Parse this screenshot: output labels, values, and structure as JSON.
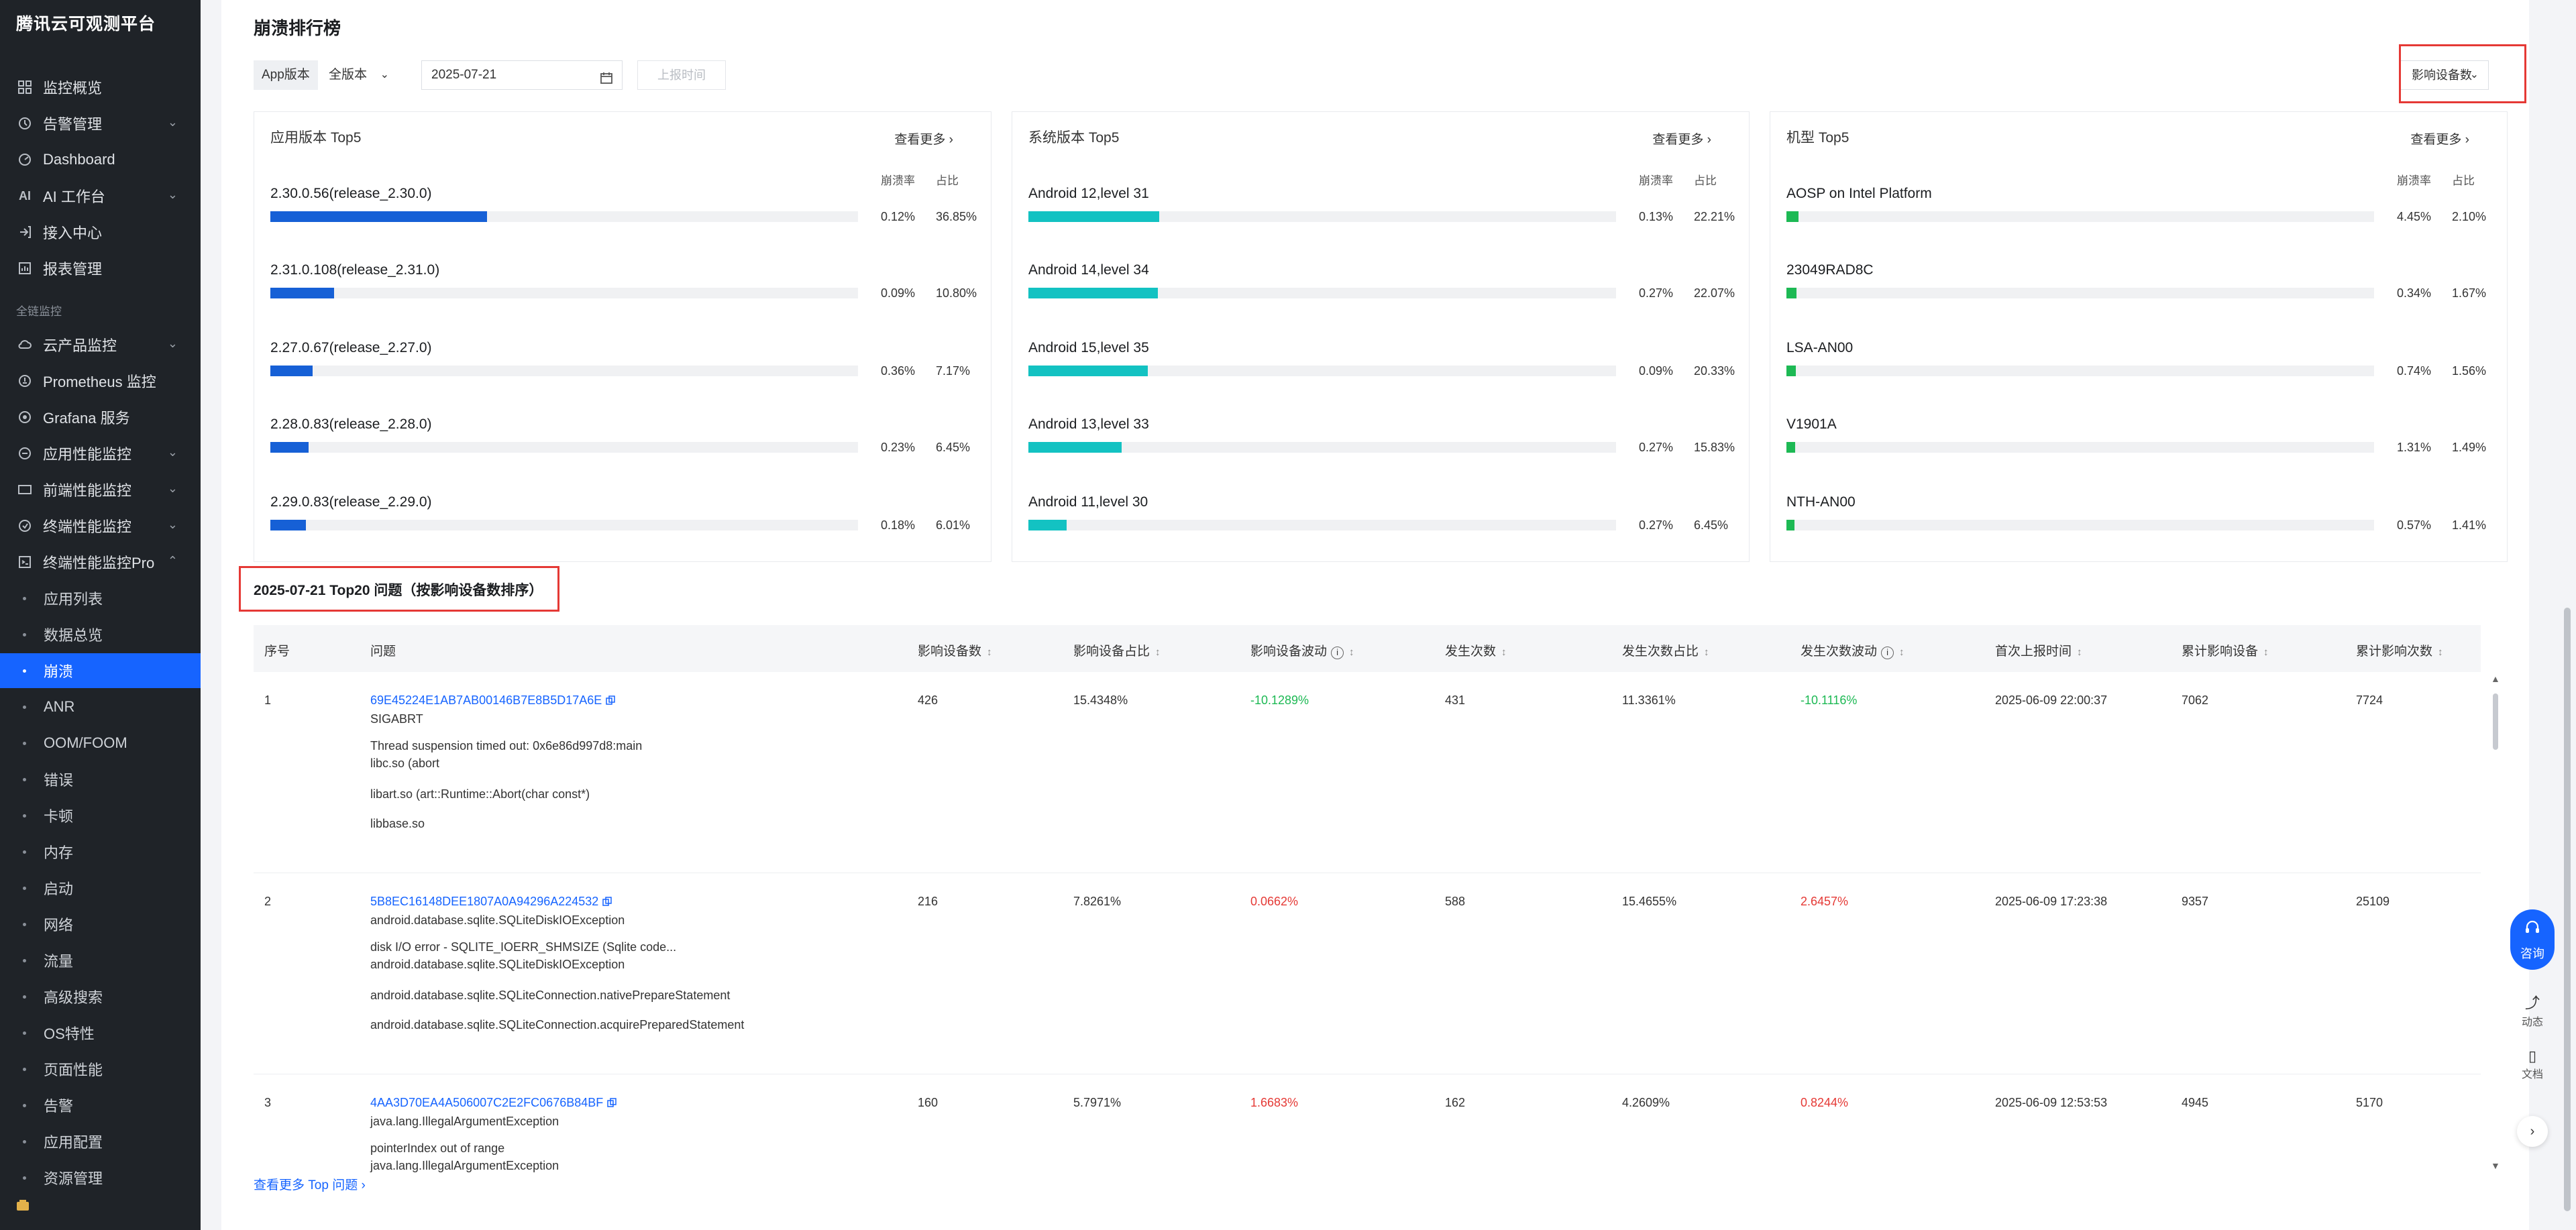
{
  "sidebar": {
    "title": "腾讯云可观测平台",
    "items": [
      {
        "label": "监控概览",
        "icon": "grid-icon"
      },
      {
        "label": "告警管理",
        "icon": "alarm-icon",
        "expandable": true
      },
      {
        "label": "Dashboard",
        "icon": "dashboard-icon"
      },
      {
        "label": "AI 工作台",
        "icon": "ai-icon",
        "expandable": true
      },
      {
        "label": "接入中心",
        "icon": "access-icon"
      },
      {
        "label": "报表管理",
        "icon": "report-icon"
      }
    ],
    "section": "全链监控",
    "section_items": [
      {
        "label": "云产品监控",
        "icon": "cloud-icon",
        "expandable": true
      },
      {
        "label": "Prometheus 监控",
        "icon": "prometheus-icon"
      },
      {
        "label": "Grafana 服务",
        "icon": "grafana-icon"
      },
      {
        "label": "应用性能监控",
        "icon": "apm-icon",
        "expandable": true
      },
      {
        "label": "前端性能监控",
        "icon": "frontend-icon",
        "expandable": true
      },
      {
        "label": "终端性能监控",
        "icon": "terminal-icon",
        "expandable": true
      },
      {
        "label": "终端性能监控Pro",
        "icon": "terminal-pro-icon",
        "expandable": true
      }
    ],
    "sub_items": [
      {
        "label": "应用列表"
      },
      {
        "label": "数据总览"
      },
      {
        "label": "崩溃",
        "active": true
      },
      {
        "label": "ANR"
      },
      {
        "label": "OOM/FOOM"
      },
      {
        "label": "错误"
      },
      {
        "label": "卡顿"
      },
      {
        "label": "内存"
      },
      {
        "label": "启动"
      },
      {
        "label": "网络"
      },
      {
        "label": "流量"
      },
      {
        "label": "高级搜索"
      },
      {
        "label": "OS特性"
      },
      {
        "label": "页面性能"
      },
      {
        "label": "告警"
      },
      {
        "label": "应用配置"
      },
      {
        "label": "资源管理"
      }
    ]
  },
  "main": {
    "title": "崩溃排行榜",
    "filters": {
      "app_version_label": "App版本",
      "app_version_value": "全版本",
      "date": "2025-07-21",
      "report_time_button": "上报时间",
      "sort_button": "影响设备数"
    },
    "colors": {
      "blue": "#1660d6",
      "cyan": "#13c2c2",
      "green": "#1db954",
      "red": "#e53935",
      "link": "#1664ff"
    },
    "panels": [
      {
        "title": "应用版本 Top5",
        "more": "查看更多",
        "col_rate": "崩溃率",
        "col_share": "占比",
        "color": "#1660d6",
        "rows": [
          {
            "name": "2.30.0.56(release_2.30.0)",
            "rate": "0.12%",
            "share": "36.85%",
            "share_num": 36.85
          },
          {
            "name": "2.31.0.108(release_2.31.0)",
            "rate": "0.09%",
            "share": "10.80%",
            "share_num": 10.8
          },
          {
            "name": "2.27.0.67(release_2.27.0)",
            "rate": "0.36%",
            "share": "7.17%",
            "share_num": 7.17
          },
          {
            "name": "2.28.0.83(release_2.28.0)",
            "rate": "0.23%",
            "share": "6.45%",
            "share_num": 6.45
          },
          {
            "name": "2.29.0.83(release_2.29.0)",
            "rate": "0.18%",
            "share": "6.01%",
            "share_num": 6.01
          }
        ]
      },
      {
        "title": "系统版本 Top5",
        "more": "查看更多",
        "col_rate": "崩溃率",
        "col_share": "占比",
        "color": "#13c2c2",
        "rows": [
          {
            "name": "Android 12,level 31",
            "rate": "0.13%",
            "share": "22.21%",
            "share_num": 22.21
          },
          {
            "name": "Android 14,level 34",
            "rate": "0.27%",
            "share": "22.07%",
            "share_num": 22.07
          },
          {
            "name": "Android 15,level 35",
            "rate": "0.09%",
            "share": "20.33%",
            "share_num": 20.33
          },
          {
            "name": "Android 13,level 33",
            "rate": "0.27%",
            "share": "15.83%",
            "share_num": 15.83
          },
          {
            "name": "Android 11,level 30",
            "rate": "0.27%",
            "share": "6.45%",
            "share_num": 6.45
          }
        ]
      },
      {
        "title": "机型 Top5",
        "more": "查看更多",
        "col_rate": "崩溃率",
        "col_share": "占比",
        "color": "#1db954",
        "rows": [
          {
            "name": "AOSP on Intel Platform",
            "rate": "4.45%",
            "share": "2.10%",
            "share_num": 2.1
          },
          {
            "name": "23049RAD8C",
            "rate": "0.34%",
            "share": "1.67%",
            "share_num": 1.67
          },
          {
            "name": "LSA-AN00",
            "rate": "0.74%",
            "share": "1.56%",
            "share_num": 1.56
          },
          {
            "name": "V1901A",
            "rate": "1.31%",
            "share": "1.49%",
            "share_num": 1.49
          },
          {
            "name": "NTH-AN00",
            "rate": "0.57%",
            "share": "1.41%",
            "share_num": 1.41
          }
        ]
      }
    ],
    "top20_title": "2025-07-21 Top20 问题（按影响设备数排序）",
    "table": {
      "headers": [
        "序号",
        "问题",
        "影响设备数",
        "影响设备占比",
        "影响设备波动",
        "发生次数",
        "发生次数占比",
        "发生次数波动",
        "首次上报时间",
        "累计影响设备",
        "累计影响次数"
      ],
      "rows": [
        {
          "index": "1",
          "id": "69E45224E1AB7AB00146B7E8B5D17A6E",
          "lines": [
            "SIGABRT",
            "Thread suspension timed out: 0x6e86d997d8:main",
            "libc.so (abort",
            "libart.so (art::Runtime::Abort(char const*)",
            "libbase.so"
          ],
          "devices": "426",
          "device_share": "15.4348%",
          "device_wave": "-10.1289%",
          "device_wave_dir": "down",
          "count": "431",
          "count_share": "11.3361%",
          "count_wave": "-10.1116%",
          "count_wave_dir": "down",
          "first_time": "2025-06-09 22:00:37",
          "total_devices": "7062",
          "total_count": "7724"
        },
        {
          "index": "2",
          "id": "5B8EC16148DEE1807A0A94296A224532",
          "lines": [
            "android.database.sqlite.SQLiteDiskIOException",
            "disk I/O error - SQLITE_IOERR_SHMSIZE (Sqlite code...",
            "android.database.sqlite.SQLiteDiskIOException",
            "android.database.sqlite.SQLiteConnection.nativePrepareStatement",
            "android.database.sqlite.SQLiteConnection.acquirePreparedStatement"
          ],
          "devices": "216",
          "device_share": "7.8261%",
          "device_wave": "0.0662%",
          "device_wave_dir": "up",
          "count": "588",
          "count_share": "15.4655%",
          "count_wave": "2.6457%",
          "count_wave_dir": "up",
          "first_time": "2025-06-09 17:23:38",
          "total_devices": "9357",
          "total_count": "25109"
        },
        {
          "index": "3",
          "id": "4AA3D70EA4A506007C2E2FC0676B84BF",
          "lines": [
            "java.lang.IllegalArgumentException",
            "pointerIndex out of range",
            "java.lang.IllegalArgumentException"
          ],
          "devices": "160",
          "device_share": "5.7971%",
          "device_wave": "1.6683%",
          "device_wave_dir": "up",
          "count": "162",
          "count_share": "4.2609%",
          "count_wave": "0.8244%",
          "count_wave_dir": "up",
          "first_time": "2025-06-09 12:53:53",
          "total_devices": "4945",
          "total_count": "5170"
        }
      ]
    },
    "more_link": "查看更多 Top 问题"
  },
  "floating": {
    "consult": "咨询",
    "activity": "动态",
    "docs": "文档"
  }
}
